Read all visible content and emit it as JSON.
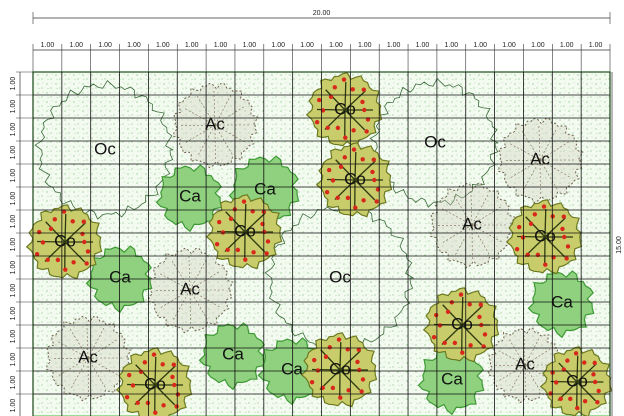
{
  "dimensions": {
    "total_width": "20.00",
    "total_height": "15.00",
    "column_widths": [
      "1.00",
      "1.00",
      "1.00",
      "1.00",
      "1.00",
      "1.00",
      "1.00",
      "1.00",
      "1.00",
      "1.00",
      "1.00",
      "1.00",
      "1.00",
      "1.00",
      "1.00",
      "1.00",
      "1.00",
      "1.00",
      "1.00",
      "1.00"
    ],
    "row_heights": [
      "1.00",
      "1.00",
      "1.00",
      "1.00",
      "1.00",
      "1.00",
      "1.00",
      "1.00",
      "1.00",
      "1.00",
      "1.00",
      "1.00",
      "1.00",
      "1.00",
      "1.00"
    ]
  },
  "plants": [
    "Oc",
    "Oc",
    "Oc",
    "Ac",
    "Ac",
    "Ac",
    "Ac",
    "Ac",
    "Ac",
    "Ca",
    "Ca",
    "Ca",
    "Ca",
    "Ca",
    "Ca",
    "Ca",
    "Co",
    "Co",
    "Co",
    "Co",
    "Co",
    "Co",
    "Co",
    "Co",
    "Co"
  ]
}
